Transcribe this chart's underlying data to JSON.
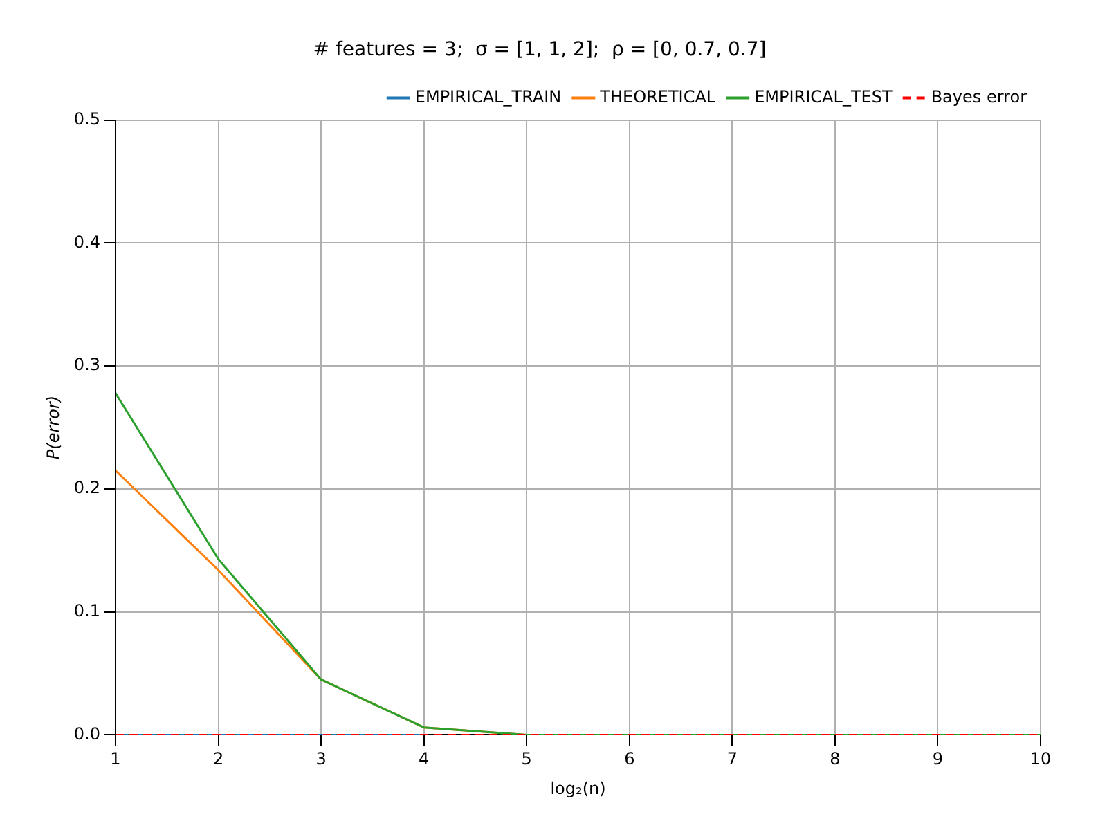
{
  "chart_data": {
    "type": "line",
    "title": "# features = 3;  σ = [1, 1, 2];  ρ = [0, 0.7, 0.7]",
    "xlabel": "log₂(n)",
    "ylabel": "P(error)",
    "x": [
      1,
      2,
      3,
      4,
      5,
      6,
      7,
      8,
      9,
      10
    ],
    "series": [
      {
        "name": "EMPIRICAL_TRAIN",
        "color": "#1f77b4",
        "values": [
          0,
          0,
          0,
          0,
          null,
          null,
          null,
          null,
          null,
          null
        ]
      },
      {
        "name": "THEORETICAL",
        "color": "#ff7f0e",
        "values": [
          0.215,
          0.134,
          0.045,
          0.006,
          0,
          null,
          null,
          null,
          null,
          null
        ]
      },
      {
        "name": "EMPIRICAL_TEST",
        "color": "#2ca02c",
        "values": [
          0.278,
          0.143,
          0.045,
          0.006,
          0,
          0,
          0,
          0,
          0,
          0
        ]
      },
      {
        "name": "Bayes error",
        "color": "#ff0000",
        "values": [
          0,
          0,
          0,
          0,
          0,
          0,
          0,
          0,
          0,
          0
        ],
        "line_style": "dashed"
      }
    ],
    "xlim": [
      1,
      10
    ],
    "xticks": [
      1,
      2,
      3,
      4,
      5,
      6,
      7,
      8,
      9,
      10
    ],
    "ylim": [
      0,
      0.5
    ],
    "yticks": [
      {
        "value": 0,
        "label": "0.0"
      },
      0.1,
      0.2,
      0.3,
      0.4,
      0.5
    ],
    "grid": true,
    "legend": "top right",
    "marker": "none"
  }
}
